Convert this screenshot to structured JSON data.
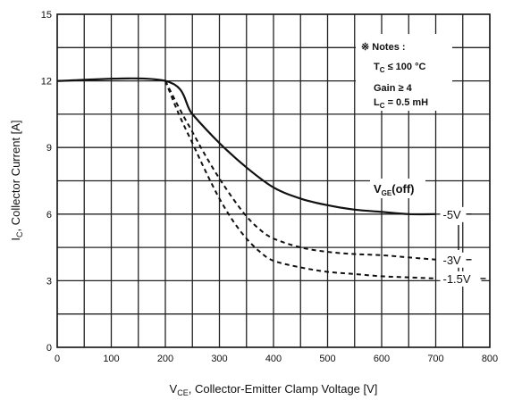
{
  "chart_data": {
    "type": "line",
    "xlabel": "V",
    "xlabel_sub": "CE",
    "xlabel_rest": ", Collector-Emitter Clamp Voltage [V]",
    "ylabel": "I",
    "ylabel_sub": "C",
    "ylabel_rest": ", Collector Current [A]",
    "xlim": [
      0,
      800
    ],
    "ylim": [
      0,
      15
    ],
    "x_ticks": [
      0,
      100,
      200,
      300,
      400,
      500,
      600,
      700,
      800
    ],
    "y_ticks": [
      0,
      3,
      6,
      9,
      12,
      15
    ],
    "x_tick_labels": [
      "0",
      "100",
      "200",
      "300",
      "400",
      "500",
      "600",
      "700",
      "800"
    ],
    "y_tick_labels": [
      "0",
      "3",
      "6",
      "9",
      "12",
      "15"
    ],
    "grid": true,
    "notes": {
      "line1": "※ Notes :",
      "line2": "T",
      "line2_sub": "C",
      "line2_rest": " ≤ 100 °C",
      "line3": "Gain  ≥ 4",
      "line4": "L",
      "line4_sub": "C",
      "line4_rest": " = 0.5 mH"
    },
    "legend_title": "V",
    "legend_title_sub": "GE",
    "legend_title_rest": "(off)",
    "series": [
      {
        "name": "-5V",
        "style": "solid",
        "x": [
          0,
          200,
          250,
          300,
          350,
          400,
          450,
          500,
          550,
          600,
          650,
          700
        ],
        "y": [
          12,
          12,
          10.5,
          9.2,
          8.1,
          7.2,
          6.7,
          6.4,
          6.2,
          6.1,
          6.0,
          6.0
        ]
      },
      {
        "name": "-3V",
        "style": "dashed",
        "x": [
          200,
          225,
          250,
          275,
          300,
          325,
          350,
          375,
          400,
          450,
          500,
          550,
          600,
          650,
          700
        ],
        "y": [
          12,
          10.8,
          9.7,
          8.6,
          7.6,
          6.7,
          5.9,
          5.3,
          4.9,
          4.5,
          4.3,
          4.2,
          4.15,
          4.05,
          3.95
        ]
      },
      {
        "name": "-1.5V",
        "style": "dashed",
        "x": [
          200,
          225,
          250,
          275,
          300,
          325,
          350,
          375,
          400,
          450,
          500,
          550,
          600,
          650,
          700
        ],
        "y": [
          12,
          10.5,
          9.2,
          7.9,
          6.7,
          5.7,
          4.9,
          4.3,
          3.9,
          3.6,
          3.4,
          3.3,
          3.2,
          3.15,
          3.1
        ]
      }
    ],
    "colors": {
      "line": "#111111",
      "grid": "#222222",
      "background": "#ffffff"
    }
  }
}
